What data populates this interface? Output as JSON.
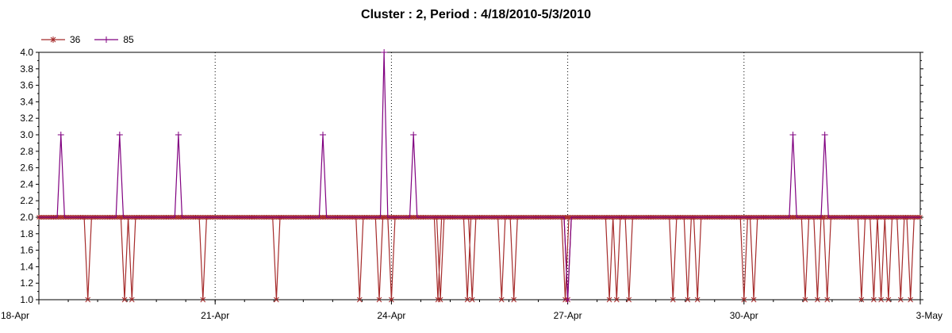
{
  "chart_data": {
    "type": "line",
    "title": "Cluster : 2, Period : 4/18/2010-5/3/2010",
    "xlabel": "",
    "ylabel": "",
    "x_range": [
      "2010-04-18",
      "2010-05-03"
    ],
    "xticks": [
      {
        "date": "2010-04-18",
        "label": "18-Apr"
      },
      {
        "date": "2010-04-21",
        "label": "21-Apr"
      },
      {
        "date": "2010-04-24",
        "label": "24-Apr"
      },
      {
        "date": "2010-04-27",
        "label": "27-Apr"
      },
      {
        "date": "2010-04-30",
        "label": "30-Apr"
      },
      {
        "date": "2010-05-03",
        "label": "3-May"
      }
    ],
    "ylim": [
      1.0,
      4.0
    ],
    "yticks": [
      "1.0",
      "1.2",
      "1.4",
      "1.6",
      "1.8",
      "2.0",
      "2.2",
      "2.4",
      "2.6",
      "2.8",
      "3.0",
      "3.2",
      "3.4",
      "3.6",
      "3.8",
      "4.0"
    ],
    "grid": "vertical dotted at major x ticks",
    "legend_position": "top-left",
    "series": [
      {
        "name": "36",
        "color": "#a52a2a",
        "marker": "asterisk",
        "baseline": 2.0,
        "dips": [
          {
            "date": "2010-04-18 20:00",
            "value": 1.0
          },
          {
            "date": "2010-04-19 11:00",
            "value": 1.0
          },
          {
            "date": "2010-04-19 14:00",
            "value": 1.0
          },
          {
            "date": "2010-04-20 19:00",
            "value": 1.0
          },
          {
            "date": "2010-04-22 01:00",
            "value": 1.0
          },
          {
            "date": "2010-04-23 11:00",
            "value": 1.0
          },
          {
            "date": "2010-04-23 19:00",
            "value": 1.0
          },
          {
            "date": "2010-04-24 00:00",
            "value": 1.0
          },
          {
            "date": "2010-04-24 19:00",
            "value": 1.0
          },
          {
            "date": "2010-04-24 20:00",
            "value": 1.0
          },
          {
            "date": "2010-04-25 07:00",
            "value": 1.0
          },
          {
            "date": "2010-04-25 09:00",
            "value": 1.0
          },
          {
            "date": "2010-04-25 21:00",
            "value": 1.0
          },
          {
            "date": "2010-04-26 02:00",
            "value": 1.0
          },
          {
            "date": "2010-04-26 23:00",
            "value": 1.0
          },
          {
            "date": "2010-04-27 00:00",
            "value": 1.0
          },
          {
            "date": "2010-04-27 17:00",
            "value": 1.0
          },
          {
            "date": "2010-04-27 20:00",
            "value": 1.0
          },
          {
            "date": "2010-04-28 01:00",
            "value": 1.0
          },
          {
            "date": "2010-04-28 19:00",
            "value": 1.0
          },
          {
            "date": "2010-04-29 01:00",
            "value": 1.0
          },
          {
            "date": "2010-04-29 05:00",
            "value": 1.0
          },
          {
            "date": "2010-04-30 00:00",
            "value": 1.0
          },
          {
            "date": "2010-04-30 04:00",
            "value": 1.0
          },
          {
            "date": "2010-05-01 01:00",
            "value": 1.0
          },
          {
            "date": "2010-05-01 06:00",
            "value": 1.0
          },
          {
            "date": "2010-05-01 10:00",
            "value": 1.0
          },
          {
            "date": "2010-05-02 00:00",
            "value": 1.0
          },
          {
            "date": "2010-05-02 05:00",
            "value": 1.0
          },
          {
            "date": "2010-05-02 08:00",
            "value": 1.0
          },
          {
            "date": "2010-05-02 11:00",
            "value": 1.0
          },
          {
            "date": "2010-05-02 16:00",
            "value": 1.0
          },
          {
            "date": "2010-05-02 20:00",
            "value": 1.0
          }
        ]
      },
      {
        "name": "85",
        "color": "#800080",
        "marker": "plus",
        "baseline": 2.0,
        "peaks": [
          {
            "date": "2010-04-18 09:00",
            "value": 3.0
          },
          {
            "date": "2010-04-19 09:00",
            "value": 3.0
          },
          {
            "date": "2010-04-20 09:00",
            "value": 3.0
          },
          {
            "date": "2010-04-22 20:00",
            "value": 3.0
          },
          {
            "date": "2010-04-23 21:00",
            "value": 4.0
          },
          {
            "date": "2010-04-24 09:00",
            "value": 3.0
          },
          {
            "date": "2010-04-27 00:00",
            "value": 1.0
          },
          {
            "date": "2010-04-30 20:00",
            "value": 3.0
          },
          {
            "date": "2010-05-01 09:00",
            "value": 3.0
          }
        ]
      }
    ]
  }
}
